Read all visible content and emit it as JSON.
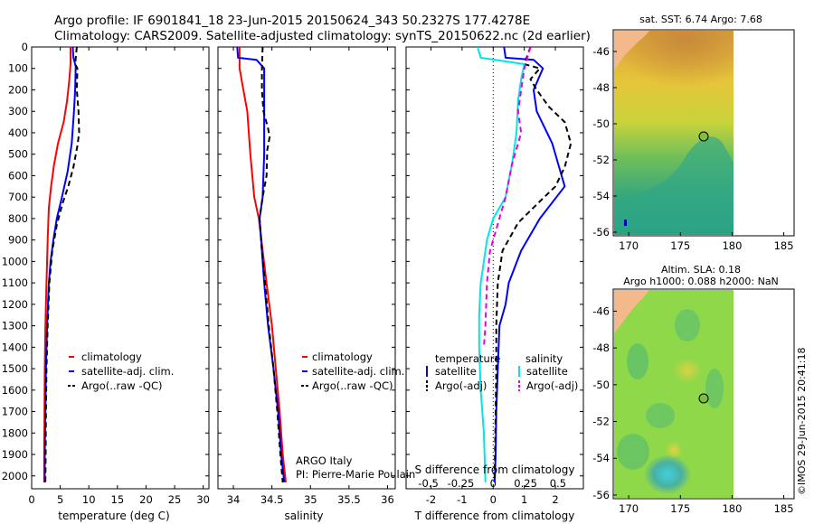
{
  "header": {
    "line1": "Argo profile: IF 6901841_18 23-Jun-2015 20150624_343 50.2327S 177.4278E",
    "line2": "Climatology: CARS2009. Satellite-adjusted climatology: synTS_20150622.nc (2d earlier)"
  },
  "depth_ticks": [
    "0",
    "100",
    "200",
    "300",
    "400",
    "500",
    "600",
    "700",
    "800",
    "900",
    "1000",
    "1100",
    "1200",
    "1300",
    "1400",
    "1500",
    "1600",
    "1700",
    "1800",
    "1900",
    "2000"
  ],
  "colors": {
    "climatology": "#ff0000",
    "satellite": "#0000ff",
    "argo": "#000000",
    "salinity_satellite": "#00e6e6",
    "salinity_argo": "#e600e6",
    "land": "#f4b98a",
    "marker": "#7fbf3f"
  },
  "chart_data": [
    {
      "type": "line",
      "xlabel": "temperature (deg C)",
      "xlim": [
        0,
        31
      ],
      "ylim": [
        2060,
        0
      ],
      "x_ticks": [
        "0",
        "5",
        "10",
        "15",
        "20",
        "25",
        "30"
      ],
      "legend": {
        "position": "middle-right",
        "entries": [
          "climatology",
          "satellite-adj. clim.",
          "Argo(..raw -QC)"
        ]
      },
      "series": [
        {
          "name": "climatology",
          "style": "solid",
          "points": [
            [
              6.8,
              0
            ],
            [
              6.8,
              80
            ],
            [
              6.6,
              150
            ],
            [
              6.2,
              250
            ],
            [
              5.6,
              350
            ],
            [
              4.6,
              450
            ],
            [
              3.9,
              550
            ],
            [
              3.4,
              650
            ],
            [
              3.0,
              750
            ],
            [
              2.8,
              900
            ],
            [
              2.6,
              1100
            ],
            [
              2.4,
              1300
            ],
            [
              2.3,
              1500
            ],
            [
              2.25,
              1700
            ],
            [
              2.2,
              1900
            ],
            [
              2.2,
              2030
            ]
          ]
        },
        {
          "name": "satellite-adj. clim.",
          "style": "solid",
          "points": [
            [
              7.2,
              0
            ],
            [
              7.3,
              50
            ],
            [
              7.7,
              90
            ],
            [
              7.6,
              200
            ],
            [
              7.4,
              300
            ],
            [
              7.0,
              450
            ],
            [
              6.3,
              580
            ],
            [
              5.3,
              700
            ],
            [
              4.4,
              800
            ],
            [
              3.8,
              900
            ],
            [
              3.3,
              1000
            ],
            [
              3.0,
              1100
            ],
            [
              2.7,
              1300
            ],
            [
              2.5,
              1500
            ],
            [
              2.4,
              1700
            ],
            [
              2.3,
              1900
            ],
            [
              2.3,
              2030
            ]
          ]
        },
        {
          "name": "Argo(..raw -QC)",
          "style": "dashed",
          "points": [
            [
              7.9,
              0
            ],
            [
              7.6,
              80
            ],
            [
              8.0,
              100
            ],
            [
              7.9,
              200
            ],
            [
              8.2,
              300
            ],
            [
              8.3,
              400
            ],
            [
              8.0,
              460
            ],
            [
              7.3,
              560
            ],
            [
              6.4,
              650
            ],
            [
              5.4,
              730
            ],
            [
              4.4,
              830
            ],
            [
              3.6,
              950
            ],
            [
              3.1,
              1100
            ],
            [
              2.8,
              1300
            ],
            [
              2.6,
              1500
            ],
            [
              2.5,
              1700
            ],
            [
              2.45,
              1900
            ],
            [
              2.4,
              2030
            ]
          ]
        }
      ]
    },
    {
      "type": "line",
      "xlabel": "salinity",
      "xlim": [
        33.8,
        36.1
      ],
      "ylim": [
        2060,
        0
      ],
      "x_ticks": [
        "34",
        "34.5",
        "35",
        "35.5",
        "36"
      ],
      "legend": {
        "position": "middle-right",
        "entries": [
          "climatology",
          "satellite-adj. clim.",
          "Argo(..raw -QC)"
        ]
      },
      "annotations": [
        "ARGO Italy",
        "PI: Pierre-Marie Poulain"
      ],
      "series": [
        {
          "name": "climatology",
          "style": "solid",
          "points": [
            [
              34.08,
              0
            ],
            [
              34.08,
              100
            ],
            [
              34.13,
              200
            ],
            [
              34.18,
              300
            ],
            [
              34.22,
              500
            ],
            [
              34.27,
              700
            ],
            [
              34.33,
              800
            ],
            [
              34.38,
              950
            ],
            [
              34.43,
              1100
            ],
            [
              34.5,
              1300
            ],
            [
              34.55,
              1500
            ],
            [
              34.6,
              1700
            ],
            [
              34.64,
              1900
            ],
            [
              34.68,
              2030
            ]
          ]
        },
        {
          "name": "satellite-adj. clim.",
          "style": "solid",
          "points": [
            [
              34.05,
              0
            ],
            [
              34.06,
              50
            ],
            [
              34.3,
              60
            ],
            [
              34.4,
              100
            ],
            [
              34.4,
              300
            ],
            [
              34.4,
              500
            ],
            [
              34.38,
              700
            ],
            [
              34.34,
              800
            ],
            [
              34.36,
              900
            ],
            [
              34.4,
              1100
            ],
            [
              34.45,
              1300
            ],
            [
              34.52,
              1500
            ],
            [
              34.58,
              1700
            ],
            [
              34.62,
              1900
            ],
            [
              34.66,
              2030
            ]
          ]
        },
        {
          "name": "Argo(..raw -QC)",
          "style": "dashed",
          "points": [
            [
              34.38,
              0
            ],
            [
              34.37,
              100
            ],
            [
              34.37,
              200
            ],
            [
              34.39,
              300
            ],
            [
              34.45,
              380
            ],
            [
              34.47,
              420
            ],
            [
              34.44,
              480
            ],
            [
              34.43,
              600
            ],
            [
              34.38,
              700
            ],
            [
              34.34,
              800
            ],
            [
              34.37,
              950
            ],
            [
              34.41,
              1100
            ],
            [
              34.46,
              1300
            ],
            [
              34.52,
              1500
            ],
            [
              34.57,
              1700
            ],
            [
              34.61,
              1900
            ],
            [
              34.64,
              2030
            ]
          ]
        }
      ]
    },
    {
      "type": "line",
      "xlabel": "T difference from climatology",
      "x2label": "S difference from climatology",
      "xlim": [
        -2.8,
        2.9
      ],
      "ylim": [
        2060,
        0
      ],
      "x_ticks": [
        "-2",
        "-1",
        "0",
        "1",
        "2"
      ],
      "x2_ticks": [
        "-0.5",
        "-0.25",
        "0",
        "0.25",
        "0.5"
      ],
      "legend_temperature": {
        "title": "temperature",
        "entries": [
          "satellite",
          "Argo(-adj)"
        ]
      },
      "legend_salinity": {
        "title": "salinity",
        "entries": [
          "satellite",
          "Argo(-adj)"
        ]
      },
      "series": [
        {
          "name": "satellite",
          "group": "temperature",
          "style": "solid",
          "points": [
            [
              0.35,
              0
            ],
            [
              0.4,
              50
            ],
            [
              1.3,
              60
            ],
            [
              1.6,
              100
            ],
            [
              1.3,
              200
            ],
            [
              1.4,
              300
            ],
            [
              1.9,
              450
            ],
            [
              2.1,
              550
            ],
            [
              2.3,
              650
            ],
            [
              1.5,
              800
            ],
            [
              0.9,
              950
            ],
            [
              0.5,
              1100
            ],
            [
              0.4,
              1200
            ],
            [
              0.2,
              1300
            ],
            [
              0.15,
              1500
            ],
            [
              0.1,
              1700
            ],
            [
              0.08,
              1900
            ],
            [
              0.05,
              2030
            ]
          ]
        },
        {
          "name": "Argo(-adj)",
          "group": "temperature",
          "style": "dashed",
          "points": [
            [
              1.2,
              0
            ],
            [
              1.0,
              80
            ],
            [
              1.5,
              100
            ],
            [
              1.2,
              150
            ],
            [
              1.4,
              200
            ],
            [
              1.8,
              280
            ],
            [
              2.3,
              350
            ],
            [
              2.5,
              450
            ],
            [
              2.3,
              560
            ],
            [
              2.0,
              650
            ],
            [
              1.5,
              720
            ],
            [
              0.8,
              820
            ],
            [
              0.3,
              950
            ],
            [
              0.15,
              1100
            ],
            [
              0.1,
              1300
            ],
            [
              0.1,
              1500
            ],
            [
              0.08,
              1700
            ],
            [
              0.06,
              1900
            ],
            [
              0.04,
              2030
            ]
          ]
        },
        {
          "name": "satellite",
          "group": "salinity",
          "style": "solid",
          "points": [
            [
              -0.5,
              0
            ],
            [
              -0.4,
              50
            ],
            [
              1.0,
              80
            ],
            [
              0.9,
              150
            ],
            [
              0.8,
              250
            ],
            [
              0.75,
              400
            ],
            [
              0.6,
              550
            ],
            [
              0.4,
              700
            ],
            [
              0.0,
              800
            ],
            [
              -0.2,
              900
            ],
            [
              -0.3,
              1000
            ],
            [
              -0.4,
              1100
            ],
            [
              -0.45,
              1250
            ],
            [
              -0.45,
              1400
            ],
            [
              -0.4,
              1600
            ],
            [
              -0.3,
              1800
            ],
            [
              -0.25,
              2030
            ]
          ]
        },
        {
          "name": "Argo(-adj)",
          "group": "salinity",
          "style": "dashed",
          "points": [
            [
              1.2,
              0
            ],
            [
              1.0,
              100
            ],
            [
              0.9,
              200
            ],
            [
              0.8,
              300
            ],
            [
              0.9,
              400
            ],
            [
              0.6,
              550
            ],
            [
              0.4,
              700
            ],
            [
              0.1,
              850
            ],
            [
              -0.1,
              950
            ],
            [
              -0.2,
              1100
            ],
            [
              -0.25,
              1300
            ],
            [
              -0.3,
              1400
            ]
          ]
        }
      ]
    }
  ],
  "maps": [
    {
      "title": "sat. SST: 6.74  Argo: 7.68",
      "x_ticks": [
        "170",
        "175",
        "180",
        "185"
      ],
      "y_ticks": [
        "-46",
        "-48",
        "-50",
        "-52",
        "-54",
        "-56"
      ]
    },
    {
      "title_line1": "Altim. SLA: 0.18",
      "title_line2": "Argo h1000: 0.088 h2000: NaN",
      "x_ticks": [
        "170",
        "175",
        "180",
        "185"
      ],
      "y_ticks": [
        "-46",
        "-48",
        "-50",
        "-52",
        "-54",
        "-56"
      ]
    }
  ],
  "watermark": "©IMOS 29-Jun-2015 20:41:18"
}
